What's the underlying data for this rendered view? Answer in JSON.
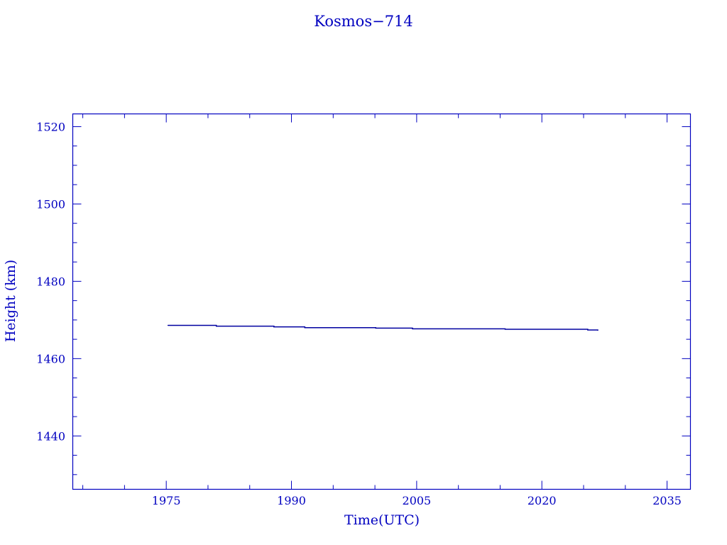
{
  "chart_data": {
    "type": "line",
    "title": "Kosmos−714",
    "xlabel": "Time(UTC)",
    "ylabel": "Height (km)",
    "xlim": [
      1963.8,
      2037.8
    ],
    "ylim": [
      1426.2,
      1523.3
    ],
    "xticks": [
      1975,
      1990,
      2005,
      2020,
      2035
    ],
    "yticks": [
      1440,
      1460,
      1480,
      1500,
      1520
    ],
    "grid": false,
    "color": "#0000a0",
    "axis_color": "#0000c0",
    "series": [
      {
        "x": [
          1975.2,
          1981.0,
          1987.9,
          1991.6,
          2000.1,
          2004.5,
          2015.6,
          2025.5,
          2026.7
        ],
        "y": [
          1468.6,
          1468.4,
          1468.2,
          1468.0,
          1467.9,
          1467.7,
          1467.6,
          1467.4,
          1467.3
        ]
      }
    ]
  }
}
